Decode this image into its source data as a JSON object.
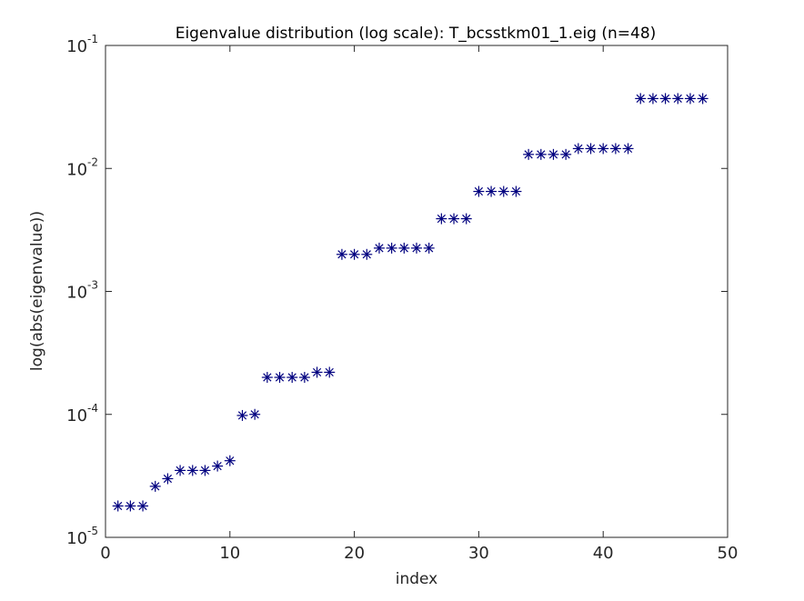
{
  "chart_data": {
    "type": "scatter",
    "title": "Eigenvalue distribution (log scale): T_bcsstkm01_1.eig (n=48)",
    "xlabel": "index",
    "ylabel": "log(abs(eigenvalue))",
    "xlim": [
      0,
      50
    ],
    "ylim": [
      1e-05,
      0.1
    ],
    "yscale": "log",
    "grid": false,
    "marker": "asterisk",
    "marker_color": "#00007f",
    "x_ticks": [
      "0",
      "10",
      "20",
      "30",
      "40",
      "50"
    ],
    "x_tick_values": [
      0,
      10,
      20,
      30,
      40,
      50
    ],
    "y_ticks": [
      {
        "base": "10",
        "exp": "-5",
        "value": 1e-05
      },
      {
        "base": "10",
        "exp": "-4",
        "value": 0.0001
      },
      {
        "base": "10",
        "exp": "-3",
        "value": 0.001
      },
      {
        "base": "10",
        "exp": "-2",
        "value": 0.01
      },
      {
        "base": "10",
        "exp": "-1",
        "value": 0.1
      }
    ],
    "series": [
      {
        "x": [
          1,
          2,
          3,
          4,
          5,
          6,
          7,
          8,
          9,
          10,
          11,
          12,
          13,
          14,
          15,
          16,
          17,
          18,
          19,
          20,
          21,
          22,
          23,
          24,
          25,
          26,
          27,
          28,
          29,
          30,
          31,
          32,
          33,
          34,
          35,
          36,
          37,
          38,
          39,
          40,
          41,
          42,
          43,
          44,
          45,
          46,
          47,
          48
        ],
        "y": [
          1.8e-05,
          1.8e-05,
          1.8e-05,
          2.6e-05,
          3e-05,
          3.5e-05,
          3.5e-05,
          3.5e-05,
          3.8e-05,
          4.2e-05,
          9.8e-05,
          0.0001,
          0.0002,
          0.0002,
          0.0002,
          0.0002,
          0.00022,
          0.00022,
          0.002,
          0.002,
          0.002,
          0.00225,
          0.00225,
          0.00225,
          0.00225,
          0.00225,
          0.0039,
          0.0039,
          0.0039,
          0.0065,
          0.0065,
          0.0065,
          0.0065,
          0.013,
          0.013,
          0.013,
          0.013,
          0.0145,
          0.0145,
          0.0145,
          0.0145,
          0.0145,
          0.037,
          0.037,
          0.037,
          0.037,
          0.037,
          0.037
        ]
      }
    ]
  }
}
